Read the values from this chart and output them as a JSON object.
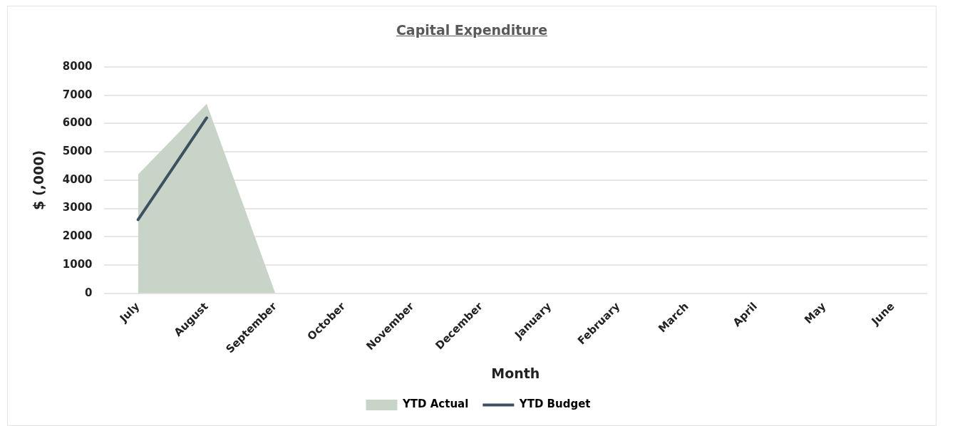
{
  "chart_data": {
    "type": "area",
    "title": "Capital Expenditure",
    "xlabel": "Month",
    "ylabel": "$ (,000)",
    "categories": [
      "July",
      "August",
      "September",
      "October",
      "November",
      "December",
      "January",
      "February",
      "March",
      "April",
      "May",
      "June"
    ],
    "series": [
      {
        "name": "YTD Actual",
        "color": "#c8d4c8",
        "values": [
          4200,
          6700,
          0,
          null,
          null,
          null,
          null,
          null,
          null,
          null,
          null,
          null
        ]
      },
      {
        "name": "YTD Budget",
        "type": "line",
        "color": "#3e5160",
        "values": [
          2600,
          6200,
          null,
          null,
          null,
          null,
          null,
          null,
          null,
          null,
          null,
          null
        ]
      }
    ],
    "ylim": [
      0,
      8000
    ],
    "yticks": [
      0,
      1000,
      2000,
      3000,
      4000,
      5000,
      6000,
      7000,
      8000
    ],
    "grid": "y",
    "legend": "bottom",
    "marker": "none"
  }
}
